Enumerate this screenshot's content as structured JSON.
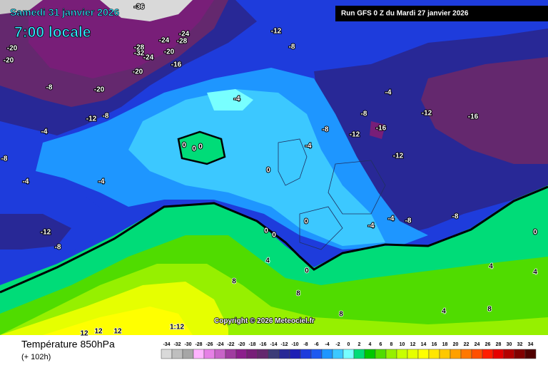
{
  "header": {
    "date": "Samedi 31 janvier 2026",
    "time": "7:00 locale",
    "run": "Run GFS 0 Z du Mardi 27 janvier 2026"
  },
  "footer": {
    "parameter": "Température 850hPa",
    "lead": "(+ 102h)",
    "copyright": "Copyright © 2026 Meteociel.fr"
  },
  "contour_labels": [
    "-36",
    "-24",
    "-28",
    "-24",
    "-28",
    "-32",
    "-20",
    "-24",
    "-20",
    "-20",
    "-16",
    "-20",
    "-12",
    "-8",
    "-8",
    "-20",
    "-12",
    "-8",
    "-4",
    "-4",
    "-4",
    "-8",
    "-12",
    "-16",
    "-8",
    "-12",
    "-16",
    "-12",
    "-4",
    "0",
    "0",
    "0",
    "-8",
    "-4",
    "-4",
    "0",
    "-12",
    "-8",
    "0",
    "0",
    "0",
    "-4",
    "-4",
    "-8",
    "-8",
    "0",
    "4",
    "0",
    "8",
    "8",
    "12",
    "12",
    "12",
    "1:12",
    "4",
    "8",
    "4",
    "8",
    "4"
  ],
  "scale": {
    "values": [
      -34,
      -32,
      -30,
      -28,
      -26,
      -24,
      -22,
      -20,
      -18,
      -16,
      -14,
      -12,
      -10,
      -8,
      -6,
      -4,
      -2,
      0,
      2,
      4,
      6,
      8,
      10,
      12,
      14,
      16,
      18,
      20,
      22,
      24,
      26,
      28,
      30,
      32,
      34
    ],
    "colors": [
      "#d9d9d9",
      "#bfbfbf",
      "#a6a6a6",
      "#ffb4ff",
      "#e680e6",
      "#c864c8",
      "#a03ca0",
      "#8c1e8c",
      "#781e78",
      "#64286e",
      "#3c3c78",
      "#282896",
      "#1e1eb4",
      "#1e3cdc",
      "#1e5af0",
      "#1e96ff",
      "#3cc8ff",
      "#78ffff",
      "#00dc78",
      "#00c800",
      "#50dc00",
      "#96f000",
      "#c8ff00",
      "#e6ff00",
      "#ffff00",
      "#ffe600",
      "#ffc800",
      "#ffa000",
      "#ff7800",
      "#ff5000",
      "#ff1e00",
      "#e60000",
      "#b40000",
      "#820000",
      "#500000"
    ]
  }
}
